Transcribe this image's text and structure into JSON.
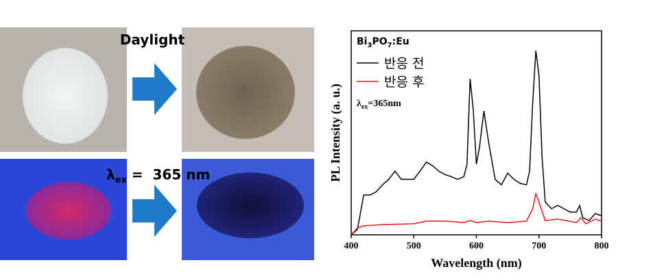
{
  "figure": {
    "daylight": "Daylight",
    "excitation": {
      "symbol": "λ",
      "sub": "ex",
      "rest": " =  365 nm"
    }
  },
  "chart_data": {
    "type": "line",
    "title": {
      "parts": [
        "Bi",
        "3",
        "PO",
        "7",
        ":Eu"
      ]
    },
    "annotation": {
      "symbol": "λ",
      "sub": "ex",
      "rest": "=365nm"
    },
    "x_label": "Wavelength (nm)",
    "y_label": "PL Intensity (a. u.)",
    "xlim": [
      400,
      800
    ],
    "xticks": [
      400,
      500,
      600,
      700,
      800
    ],
    "ylim": [
      0,
      100
    ],
    "legend": "upper-left",
    "series": [
      {
        "name": "반응 전",
        "color": "#000000",
        "x": [
          400,
          410,
          420,
          430,
          440,
          450,
          460,
          470,
          480,
          490,
          500,
          510,
          520,
          530,
          540,
          550,
          560,
          570,
          580,
          585,
          590,
          595,
          600,
          605,
          612,
          620,
          630,
          640,
          650,
          660,
          670,
          680,
          685,
          690,
          695,
          700,
          705,
          710,
          720,
          730,
          740,
          750,
          760,
          765,
          770,
          780,
          790,
          800
        ],
        "values": [
          0,
          2.7,
          19.5,
          19.5,
          21.1,
          24.5,
          27.2,
          31.2,
          27.2,
          27.2,
          27.2,
          31.2,
          35.6,
          33.9,
          31.2,
          29.5,
          28.5,
          27.2,
          28.5,
          34.6,
          76.5,
          61.4,
          34.6,
          43.0,
          60.7,
          44.6,
          27.2,
          24.5,
          30.2,
          27.2,
          25.2,
          24.5,
          31.2,
          64.8,
          90.3,
          78.2,
          37.9,
          16.1,
          12.8,
          14.4,
          12.8,
          11.1,
          11.1,
          14.4,
          8.4,
          7.0,
          10.4,
          9.4
        ]
      },
      {
        "name": "반응 후",
        "color": "#e8141c",
        "x": [
          400,
          410,
          420,
          450,
          500,
          520,
          550,
          580,
          590,
          600,
          620,
          650,
          680,
          690,
          695,
          700,
          710,
          730,
          760,
          767,
          775,
          790,
          800
        ],
        "values": [
          0,
          3.4,
          4.4,
          5.0,
          5.4,
          6.7,
          6.7,
          6.0,
          7.0,
          6.0,
          6.7,
          6.0,
          6.7,
          12.8,
          20.1,
          16.1,
          7.0,
          7.7,
          6.0,
          8.4,
          5.4,
          7.7,
          6.7
        ]
      }
    ]
  }
}
